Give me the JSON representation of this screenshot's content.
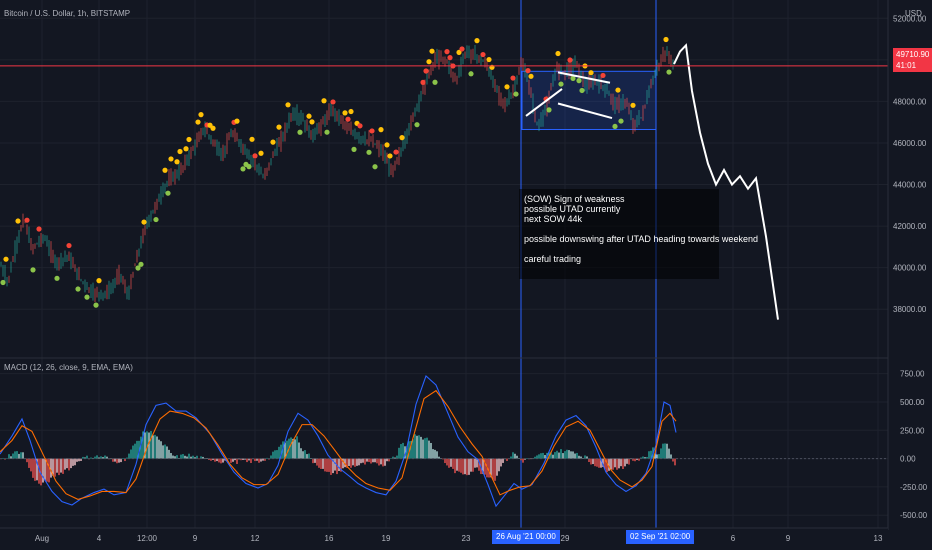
{
  "header": {
    "symbol_title": "Bitcoin / U.S. Dollar, 1h, BITSTAMP",
    "macd_title": "MACD (12, 26, close, 9, EMA, EMA)",
    "currency": "USD"
  },
  "annotation": {
    "lines": [
      "(SOW) Sign of weakness",
      "possible UTAD currently",
      "next SOW 44k",
      "possible downswing after UTAD heading towards weekend",
      "careful trading"
    ]
  },
  "price_tag": {
    "value": "49710.90",
    "countdown": "41:01"
  },
  "crosshair_dates": [
    "26 Aug '21  00:00",
    "02 Sep '21  02:00"
  ],
  "chart_data": [
    {
      "type": "line",
      "title": "Bitcoin / U.S. Dollar, 1h, BITSTAMP",
      "y_ticks": [
        "52000.00",
        "50000.00",
        "48000.00",
        "46000.00",
        "44000.00",
        "42000.00",
        "40000.00",
        "38000.00"
      ],
      "x_ticks": [
        "Aug",
        "4",
        "12:00",
        "9",
        "12",
        "16",
        "19",
        "23",
        "29",
        "6",
        "9",
        "13"
      ],
      "last_price": 49710.9,
      "ylim": [
        37000,
        52400
      ],
      "price_path": [
        [
          0,
          40200
        ],
        [
          8,
          39300
        ],
        [
          16,
          41000
        ],
        [
          24,
          42400
        ],
        [
          32,
          40900
        ],
        [
          44,
          41500
        ],
        [
          56,
          40200
        ],
        [
          68,
          40600
        ],
        [
          80,
          39500
        ],
        [
          92,
          38800
        ],
        [
          104,
          38700
        ],
        [
          112,
          39000
        ],
        [
          120,
          39800
        ],
        [
          128,
          38600
        ],
        [
          136,
          40300
        ],
        [
          146,
          42000
        ],
        [
          156,
          43000
        ],
        [
          168,
          44200
        ],
        [
          180,
          44600
        ],
        [
          192,
          45600
        ],
        [
          204,
          46700
        ],
        [
          214,
          46000
        ],
        [
          222,
          45400
        ],
        [
          232,
          46500
        ],
        [
          244,
          45700
        ],
        [
          254,
          45100
        ],
        [
          264,
          44300
        ],
        [
          272,
          45300
        ],
        [
          282,
          46200
        ],
        [
          292,
          47400
        ],
        [
          302,
          47200
        ],
        [
          312,
          46300
        ],
        [
          322,
          46900
        ],
        [
          332,
          47600
        ],
        [
          342,
          47100
        ],
        [
          352,
          46500
        ],
        [
          362,
          46200
        ],
        [
          372,
          46100
        ],
        [
          382,
          45600
        ],
        [
          392,
          44600
        ],
        [
          402,
          45700
        ],
        [
          412,
          47100
        ],
        [
          424,
          48700
        ],
        [
          436,
          50100
        ],
        [
          446,
          50000
        ],
        [
          456,
          49000
        ],
        [
          466,
          50400
        ],
        [
          476,
          50200
        ],
        [
          486,
          49800
        ],
        [
          496,
          48600
        ],
        [
          506,
          47800
        ],
        [
          514,
          48600
        ],
        [
          522,
          49900
        ],
        [
          530,
          48600
        ],
        [
          538,
          46700
        ],
        [
          548,
          47900
        ],
        [
          556,
          49600
        ],
        [
          566,
          49400
        ],
        [
          576,
          49900
        ],
        [
          586,
          48700
        ],
        [
          596,
          49000
        ],
        [
          606,
          48600
        ],
        [
          616,
          47800
        ],
        [
          626,
          48000
        ],
        [
          634,
          46800
        ],
        [
          642,
          47300
        ],
        [
          650,
          48600
        ],
        [
          658,
          49700
        ],
        [
          666,
          50400
        ],
        [
          674,
          49700
        ]
      ],
      "dot_colors": [
        "#ffc107",
        "#f44336",
        "#8bc34a"
      ],
      "projection_path": [
        [
          674,
          49800
        ],
        [
          680,
          50400
        ],
        [
          686,
          50700
        ],
        [
          692,
          48500
        ],
        [
          700,
          46500
        ],
        [
          708,
          45000
        ],
        [
          716,
          44000
        ],
        [
          724,
          44700
        ],
        [
          732,
          44000
        ],
        [
          740,
          44400
        ],
        [
          748,
          43800
        ],
        [
          756,
          44300
        ],
        [
          766,
          41500
        ],
        [
          778,
          37500
        ]
      ],
      "box": {
        "x0": 522,
        "x1": 656,
        "y0": 46650,
        "y1": 49450
      },
      "channel_lines": [
        [
          [
            526,
            47300
          ],
          [
            562,
            48600
          ]
        ],
        [
          [
            558,
            49400
          ],
          [
            610,
            48900
          ]
        ],
        [
          [
            558,
            47900
          ],
          [
            612,
            47200
          ]
        ]
      ],
      "vlines": [
        521,
        656
      ]
    },
    {
      "type": "line",
      "title": "MACD (12, 26, close, 9, EMA, EMA)",
      "y_ticks": [
        "750.00",
        "500.00",
        "250.00",
        "0.00",
        "-250.00",
        "-500.00"
      ],
      "ylim": [
        -560,
        800
      ],
      "series": [
        {
          "color": "#2962ff",
          "values": [
            [
              0,
              40
            ],
            [
              12,
              200
            ],
            [
              22,
              350
            ],
            [
              30,
              160
            ],
            [
              40,
              -120
            ],
            [
              52,
              -290
            ],
            [
              62,
              -380
            ],
            [
              72,
              -410
            ],
            [
              82,
              -350
            ],
            [
              94,
              -300
            ],
            [
              104,
              -270
            ],
            [
              114,
              -320
            ],
            [
              126,
              -300
            ],
            [
              136,
              -50
            ],
            [
              146,
              300
            ],
            [
              156,
              470
            ],
            [
              166,
              490
            ],
            [
              176,
              420
            ],
            [
              186,
              420
            ],
            [
              196,
              360
            ],
            [
              210,
              220
            ],
            [
              222,
              40
            ],
            [
              234,
              -120
            ],
            [
              246,
              -220
            ],
            [
              258,
              -260
            ],
            [
              268,
              -220
            ],
            [
              278,
              -60
            ],
            [
              288,
              240
            ],
            [
              298,
              400
            ],
            [
              308,
              340
            ],
            [
              318,
              200
            ],
            [
              328,
              30
            ],
            [
              340,
              -90
            ],
            [
              350,
              -160
            ],
            [
              358,
              -220
            ],
            [
              366,
              -260
            ],
            [
              376,
              -300
            ],
            [
              386,
              -320
            ],
            [
              396,
              -200
            ],
            [
              406,
              60
            ],
            [
              416,
              480
            ],
            [
              426,
              730
            ],
            [
              436,
              650
            ],
            [
              448,
              400
            ],
            [
              458,
              190
            ],
            [
              468,
              60
            ],
            [
              478,
              -10
            ],
            [
              488,
              -230
            ],
            [
              496,
              -420
            ],
            [
              506,
              -310
            ],
            [
              514,
              -220
            ],
            [
              522,
              -270
            ],
            [
              532,
              -230
            ],
            [
              544,
              -40
            ],
            [
              556,
              200
            ],
            [
              566,
              340
            ],
            [
              576,
              380
            ],
            [
              586,
              290
            ],
            [
              596,
              100
            ],
            [
              606,
              -120
            ],
            [
              616,
              -230
            ],
            [
              626,
              -290
            ],
            [
              636,
              -240
            ],
            [
              646,
              -130
            ],
            [
              656,
              120
            ],
            [
              664,
              500
            ],
            [
              670,
              470
            ],
            [
              676,
              230
            ]
          ]
        },
        {
          "color": "#ff6d00",
          "values": [
            [
              0,
              60
            ],
            [
              12,
              160
            ],
            [
              22,
              290
            ],
            [
              32,
              240
            ],
            [
              44,
              20
            ],
            [
              56,
              -200
            ],
            [
              66,
              -310
            ],
            [
              78,
              -360
            ],
            [
              90,
              -330
            ],
            [
              102,
              -290
            ],
            [
              114,
              -290
            ],
            [
              126,
              -300
            ],
            [
              136,
              -180
            ],
            [
              148,
              120
            ],
            [
              160,
              350
            ],
            [
              170,
              420
            ],
            [
              182,
              400
            ],
            [
              194,
              360
            ],
            [
              206,
              270
            ],
            [
              218,
              120
            ],
            [
              230,
              -50
            ],
            [
              242,
              -170
            ],
            [
              254,
              -230
            ],
            [
              266,
              -230
            ],
            [
              278,
              -140
            ],
            [
              290,
              110
            ],
            [
              302,
              300
            ],
            [
              312,
              300
            ],
            [
              324,
              200
            ],
            [
              336,
              60
            ],
            [
              346,
              -60
            ],
            [
              356,
              -150
            ],
            [
              366,
              -220
            ],
            [
              378,
              -260
            ],
            [
              390,
              -280
            ],
            [
              402,
              -170
            ],
            [
              412,
              150
            ],
            [
              424,
              530
            ],
            [
              436,
              600
            ],
            [
              448,
              460
            ],
            [
              460,
              280
            ],
            [
              472,
              130
            ],
            [
              482,
              20
            ],
            [
              492,
              -170
            ],
            [
              500,
              -320
            ],
            [
              510,
              -280
            ],
            [
              520,
              -250
            ],
            [
              530,
              -240
            ],
            [
              542,
              -110
            ],
            [
              554,
              110
            ],
            [
              566,
              280
            ],
            [
              578,
              330
            ],
            [
              590,
              250
            ],
            [
              600,
              80
            ],
            [
              610,
              -90
            ],
            [
              620,
              -190
            ],
            [
              632,
              -250
            ],
            [
              642,
              -190
            ],
            [
              652,
              -70
            ],
            [
              662,
              330
            ],
            [
              670,
              400
            ],
            [
              676,
              330
            ]
          ]
        }
      ],
      "hist_colors": [
        "#26a69a",
        "#b2dfdb",
        "#ef5350",
        "#ffcdd2"
      ]
    }
  ]
}
